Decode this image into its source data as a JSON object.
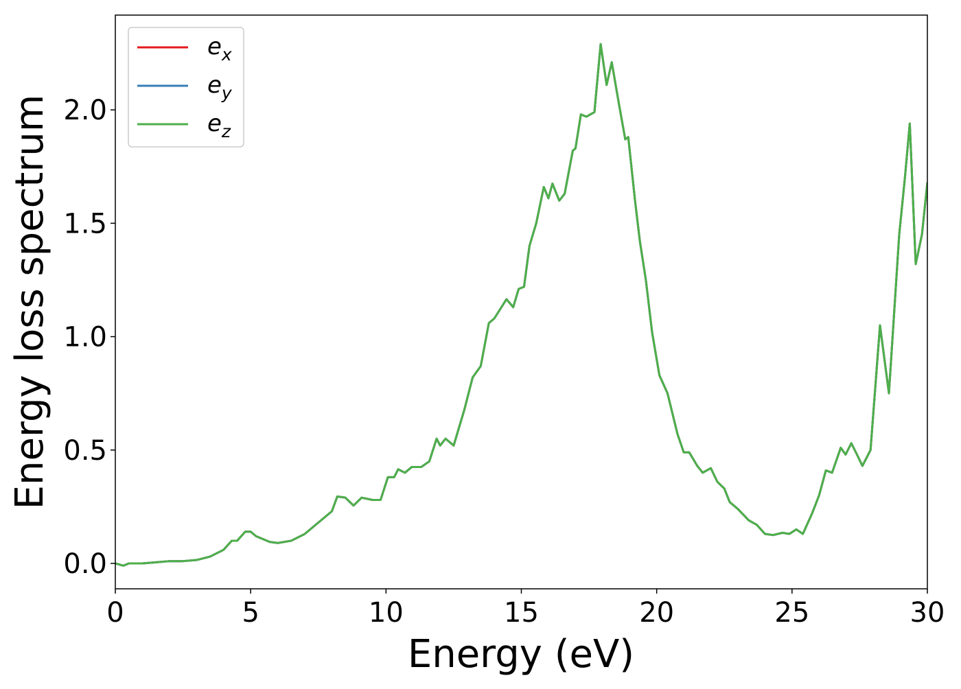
{
  "chart_data": {
    "type": "line",
    "xlabel": "Energy (eV)",
    "ylabel": "Energy loss spectrum",
    "x": [
      0,
      0.3,
      0.5,
      1,
      1.5,
      2,
      2.5,
      3,
      3.5,
      4,
      4.3,
      4.5,
      4.8,
      5.0,
      5.2,
      5.4,
      5.7,
      6.0,
      6.5,
      7.0,
      7.5,
      8.0,
      8.2,
      8.5,
      8.8,
      9.1,
      9.5,
      9.8,
      10.07,
      10.3,
      10.45,
      10.7,
      10.95,
      11.3,
      11.6,
      11.87,
      12.0,
      12.2,
      12.5,
      12.7,
      12.9,
      13.2,
      13.5,
      13.8,
      14.0,
      14.45,
      14.7,
      14.9,
      15.1,
      15.3,
      15.55,
      15.83,
      16.0,
      16.15,
      16.4,
      16.6,
      16.9,
      17.0,
      17.2,
      17.4,
      17.7,
      17.93,
      18.15,
      18.34,
      18.6,
      18.84,
      18.95,
      19.2,
      19.38,
      19.6,
      19.83,
      20.1,
      20.4,
      20.77,
      21.0,
      21.2,
      21.5,
      21.7,
      22.0,
      22.24,
      22.5,
      22.7,
      23.0,
      23.4,
      23.7,
      24.0,
      24.3,
      24.65,
      24.9,
      25.16,
      25.4,
      25.74,
      26.0,
      26.25,
      26.48,
      26.8,
      26.98,
      27.19,
      27.4,
      27.6,
      27.9,
      28.25,
      28.58,
      28.96,
      29.17,
      29.35,
      29.57,
      29.8,
      30
    ],
    "series": [
      {
        "name": "ex",
        "color": "#e41a1c",
        "values": [
          0.0,
          -0.01,
          0.0,
          0.0,
          0.005,
          0.01,
          0.01,
          0.015,
          0.03,
          0.06,
          0.1,
          0.1,
          0.14,
          0.14,
          0.12,
          0.11,
          0.095,
          0.09,
          0.1,
          0.13,
          0.18,
          0.23,
          0.295,
          0.29,
          0.255,
          0.29,
          0.28,
          0.28,
          0.38,
          0.38,
          0.415,
          0.4,
          0.425,
          0.425,
          0.45,
          0.55,
          0.52,
          0.55,
          0.52,
          0.6,
          0.68,
          0.82,
          0.87,
          1.06,
          1.08,
          1.165,
          1.13,
          1.21,
          1.22,
          1.4,
          1.5,
          1.66,
          1.61,
          1.675,
          1.6,
          1.63,
          1.82,
          1.83,
          1.98,
          1.97,
          1.99,
          2.29,
          2.11,
          2.21,
          2.03,
          1.87,
          1.88,
          1.6,
          1.42,
          1.25,
          1.02,
          0.83,
          0.75,
          0.57,
          0.49,
          0.49,
          0.43,
          0.4,
          0.42,
          0.36,
          0.33,
          0.27,
          0.24,
          0.19,
          0.17,
          0.13,
          0.125,
          0.135,
          0.13,
          0.15,
          0.13,
          0.22,
          0.3,
          0.41,
          0.4,
          0.51,
          0.48,
          0.53,
          0.48,
          0.43,
          0.5,
          1.05,
          0.75,
          1.45,
          1.7,
          1.94,
          1.32,
          1.45,
          1.68
        ]
      },
      {
        "name": "ey",
        "color": "#377eb8",
        "values": [
          0.0,
          -0.01,
          0.0,
          0.0,
          0.005,
          0.01,
          0.01,
          0.015,
          0.03,
          0.06,
          0.1,
          0.1,
          0.14,
          0.14,
          0.12,
          0.11,
          0.095,
          0.09,
          0.1,
          0.13,
          0.18,
          0.23,
          0.295,
          0.29,
          0.255,
          0.29,
          0.28,
          0.28,
          0.38,
          0.38,
          0.415,
          0.4,
          0.425,
          0.425,
          0.45,
          0.55,
          0.52,
          0.55,
          0.52,
          0.6,
          0.68,
          0.82,
          0.87,
          1.06,
          1.08,
          1.165,
          1.13,
          1.21,
          1.22,
          1.4,
          1.5,
          1.66,
          1.61,
          1.675,
          1.6,
          1.63,
          1.82,
          1.83,
          1.98,
          1.97,
          1.99,
          2.29,
          2.11,
          2.21,
          2.03,
          1.87,
          1.88,
          1.6,
          1.42,
          1.25,
          1.02,
          0.83,
          0.75,
          0.57,
          0.49,
          0.49,
          0.43,
          0.4,
          0.42,
          0.36,
          0.33,
          0.27,
          0.24,
          0.19,
          0.17,
          0.13,
          0.125,
          0.135,
          0.13,
          0.15,
          0.13,
          0.22,
          0.3,
          0.41,
          0.4,
          0.51,
          0.48,
          0.53,
          0.48,
          0.43,
          0.5,
          1.05,
          0.75,
          1.45,
          1.7,
          1.94,
          1.32,
          1.45,
          1.68
        ]
      },
      {
        "name": "ez",
        "color": "#4daf4a",
        "values": [
          0.0,
          -0.01,
          0.0,
          0.0,
          0.005,
          0.01,
          0.01,
          0.015,
          0.03,
          0.06,
          0.1,
          0.1,
          0.14,
          0.14,
          0.12,
          0.11,
          0.095,
          0.09,
          0.1,
          0.13,
          0.18,
          0.23,
          0.295,
          0.29,
          0.255,
          0.29,
          0.28,
          0.28,
          0.38,
          0.38,
          0.415,
          0.4,
          0.425,
          0.425,
          0.45,
          0.55,
          0.52,
          0.55,
          0.52,
          0.6,
          0.68,
          0.82,
          0.87,
          1.06,
          1.08,
          1.165,
          1.13,
          1.21,
          1.22,
          1.4,
          1.5,
          1.66,
          1.61,
          1.675,
          1.6,
          1.63,
          1.82,
          1.83,
          1.98,
          1.97,
          1.99,
          2.29,
          2.11,
          2.21,
          2.03,
          1.87,
          1.88,
          1.6,
          1.42,
          1.25,
          1.02,
          0.83,
          0.75,
          0.57,
          0.49,
          0.49,
          0.43,
          0.4,
          0.42,
          0.36,
          0.33,
          0.27,
          0.24,
          0.19,
          0.17,
          0.13,
          0.125,
          0.135,
          0.13,
          0.15,
          0.13,
          0.22,
          0.3,
          0.41,
          0.4,
          0.51,
          0.48,
          0.53,
          0.48,
          0.43,
          0.5,
          1.05,
          0.75,
          1.45,
          1.7,
          1.94,
          1.32,
          1.45,
          1.68
        ]
      }
    ],
    "xlim": [
      0,
      30
    ],
    "xticks": [
      0,
      5,
      10,
      15,
      20,
      25,
      30
    ],
    "ylim": [
      -0.112,
      2.418
    ],
    "yticks": [
      {
        "value": 0,
        "label": "0.0"
      },
      0.5,
      {
        "value": 1,
        "label": "1.0"
      },
      1.5,
      {
        "value": 2,
        "label": "2.0"
      }
    ],
    "grid": false,
    "legend": "upper left"
  }
}
